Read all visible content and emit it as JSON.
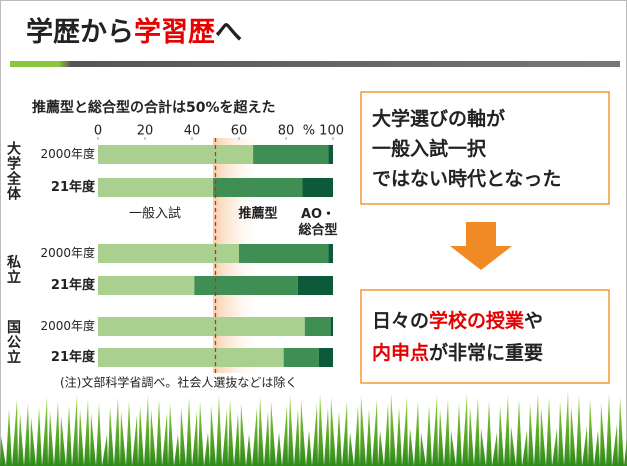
{
  "slide": {
    "title": [
      {
        "text": "学歴から"
      },
      {
        "text": "学習歴",
        "color": "#e60000"
      },
      {
        "text": "へ"
      }
    ],
    "box1": [
      [
        {
          "text": "大学選びの軸が"
        }
      ],
      [
        {
          "text": "一般入試一択"
        }
      ],
      [
        {
          "text": "ではない時代となった"
        }
      ]
    ],
    "box2": [
      [
        {
          "text": "日々の"
        },
        {
          "text": "学校の授業",
          "color": "#e60000"
        },
        {
          "text": "や"
        }
      ],
      [
        {
          "text": "内申点",
          "color": "#e60000"
        },
        {
          "text": "が非常に重要"
        }
      ]
    ]
  },
  "chart_data": {
    "type": "stacked_bar_horizontal",
    "title": "推薦型と総合型の合計は50%を超えた",
    "note": "(注)文部科学省調べ。社会人選抜などは除く",
    "groups": [
      "大学全体",
      "私立",
      "国公立"
    ],
    "categories": [
      "2000年度",
      "21年度",
      "2000年度",
      "21年度",
      "2000年度",
      "21年度"
    ],
    "series": [
      {
        "name": "一般入試",
        "color": "#a9d08e",
        "values": [
          66,
          49,
          60,
          41,
          88,
          79
        ]
      },
      {
        "name": "推薦型",
        "color": "#3f8f55",
        "values": [
          32,
          38,
          38,
          44,
          11,
          15
        ]
      },
      {
        "name": "AO・総合型",
        "color": "#0d5a3a",
        "values": [
          2,
          13,
          2,
          15,
          1,
          6
        ]
      }
    ],
    "xlim": [
      0,
      100
    ],
    "xticks": [
      0,
      20,
      40,
      60,
      80,
      {
        "value": 100,
        "label": "% 100"
      }
    ],
    "reference_line": {
      "value": 50,
      "color": "#e02020"
    }
  }
}
